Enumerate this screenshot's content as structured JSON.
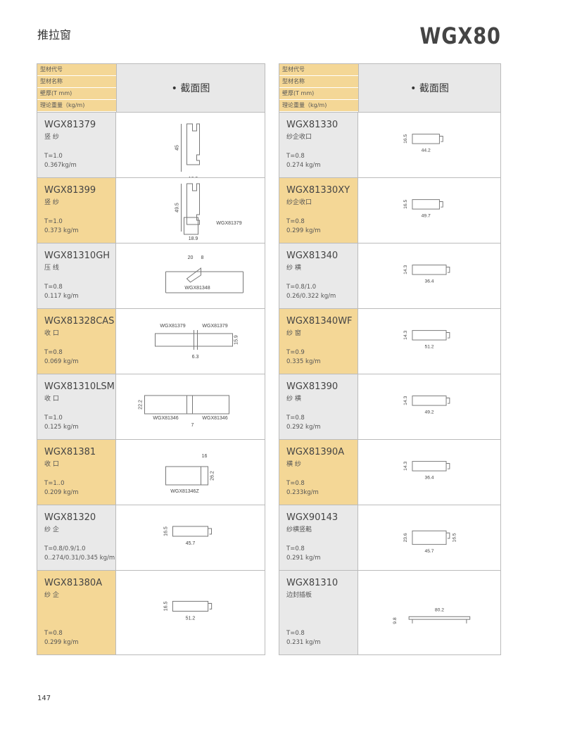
{
  "section_title": "推拉窗",
  "series": "WGX80",
  "header": {
    "labels": [
      "型材代号",
      "型材名称",
      "壁厚(T mm)",
      "理论重量（kg/m)"
    ],
    "section_label": "• 截面图"
  },
  "colors": {
    "orange": "#f4d796",
    "gray": "#e9e9e9"
  },
  "left": [
    {
      "code": "WGX81379",
      "name": "竖 纱",
      "t": "T=1.0",
      "w": "0.367kg/m",
      "bg": "gray",
      "shape": "v",
      "dims": [
        "45",
        "16.9"
      ],
      "refs": []
    },
    {
      "code": "WGX81399",
      "name": "竖 纱",
      "t": "T=1.0",
      "w": "0.373 kg/m",
      "bg": "orange",
      "shape": "v2",
      "dims": [
        "49.5",
        "18.9"
      ],
      "refs": [
        "WGX81379"
      ]
    },
    {
      "code": "WGX81310GH",
      "name": "压 线",
      "t": "T=0.8",
      "w": "0.117 kg/m",
      "bg": "gray",
      "shape": "gh",
      "dims": [
        "20",
        "8"
      ],
      "refs": [
        "WGX81348"
      ]
    },
    {
      "code": "WGX81328CAS",
      "name": "收 口",
      "t": "T=0.8",
      "w": "0.069 kg/m",
      "bg": "orange",
      "shape": "cas",
      "dims": [
        "15.9",
        "6.3"
      ],
      "refs": [
        "WGX81379",
        "WGX81379"
      ]
    },
    {
      "code": "WGX81310LSM",
      "name": "收 口",
      "t": "T=1.0",
      "w": "0.125 kg/m",
      "bg": "gray",
      "shape": "lsm",
      "dims": [
        "22.2",
        "7"
      ],
      "refs": [
        "WGX81346",
        "WGX81346"
      ]
    },
    {
      "code": "WGX81381",
      "name": "收 口",
      "t": "T=1..0",
      "w": "0.209 kg/m",
      "bg": "orange",
      "shape": "c81381",
      "dims": [
        "16",
        "26.2"
      ],
      "refs": [
        "WGX81346Z"
      ]
    },
    {
      "code": "WGX81320",
      "name": "纱 企",
      "t": "T=0.8/0.9/1.0",
      "w": "0..274/0.31/0.345 kg/m",
      "bg": "gray",
      "shape": "h",
      "dims": [
        "16.5",
        "45.7"
      ],
      "refs": []
    },
    {
      "code": "WGX81380A",
      "name": "纱 企",
      "t": "T=0.8",
      "w": "0.299 kg/m",
      "bg": "orange",
      "shape": "h",
      "dims": [
        "16.5",
        "51.2"
      ],
      "refs": []
    }
  ],
  "right": [
    {
      "code": "WGX81330",
      "name": "纱企收口",
      "t": "T=0.8",
      "w": "0.274 kg/m",
      "bg": "gray",
      "shape": "hr",
      "dims": [
        "16.5",
        "44.2"
      ],
      "refs": []
    },
    {
      "code": "WGX81330XY",
      "name": "纱企收口",
      "t": "T=0.8",
      "w": "0.299 kg/m",
      "bg": "orange",
      "shape": "hr",
      "dims": [
        "16.5",
        "49.7"
      ],
      "refs": []
    },
    {
      "code": "WGX81340",
      "name": "纱 横",
      "t": "T=0.8/1.0",
      "w": "0.26/0.322 kg/m",
      "bg": "gray",
      "shape": "h",
      "dims": [
        "14.3",
        "36.4"
      ],
      "refs": []
    },
    {
      "code": "WGX81340WF",
      "name": "纱 窗",
      "t": "T=0.9",
      "w": "0.335 kg/m",
      "bg": "orange",
      "shape": "h",
      "dims": [
        "14.3",
        "51.2"
      ],
      "refs": []
    },
    {
      "code": "WGX81390",
      "name": "纱 横",
      "t": "T=0.8",
      "w": "0.292 kg/m",
      "bg": "gray",
      "shape": "h",
      "dims": [
        "14.3",
        "49.2"
      ],
      "refs": []
    },
    {
      "code": "WGX81390A",
      "name": "横 纱",
      "t": "T=0.8",
      "w": "0.233kg/m",
      "bg": "orange",
      "shape": "h",
      "dims": [
        "14.3",
        "36.4"
      ],
      "refs": []
    },
    {
      "code": "WGX90143",
      "name": "纱横竖耜",
      "t": "T=0.8",
      "w": "0.291 kg/m",
      "bg": "gray",
      "shape": "h2",
      "dims": [
        "23.6",
        "45.7",
        "16.5"
      ],
      "refs": []
    },
    {
      "code": "WGX81310",
      "name": "边封插板",
      "t": "T=0.8",
      "w": "0.231 kg/m",
      "bg": "gray",
      "shape": "flat",
      "dims": [
        "9.8",
        "80.2"
      ],
      "refs": []
    }
  ],
  "page_number": "147"
}
